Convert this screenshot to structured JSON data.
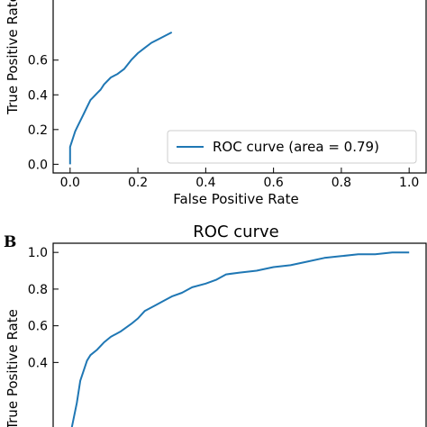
{
  "chart_data": [
    {
      "type": "line",
      "panel": "",
      "title": "",
      "xlabel": "False Positive Rate",
      "ylabel": "True Positive Rate",
      "xlim": [
        -0.05,
        1.05
      ],
      "ylim": [
        -0.05,
        1.05
      ],
      "xticks": [
        0.0,
        0.2,
        0.4,
        0.6,
        0.8,
        1.0
      ],
      "xtick_labels": [
        "0.0",
        "0.2",
        "0.4",
        "0.6",
        "0.8",
        "1.0"
      ],
      "yticks": [
        0.0,
        0.2,
        0.4,
        0.6
      ],
      "ytick_labels": [
        "0.0",
        "0.2",
        "0.4",
        "0.6"
      ],
      "grid": false,
      "legend": {
        "position": "bottom-right",
        "entries": [
          "ROC curve (area = 0.79)"
        ]
      },
      "series": [
        {
          "name": "ROC curve (area = 0.79)",
          "color": "#1f77b4",
          "x": [
            0.0,
            0.0,
            0.005,
            0.01,
            0.015,
            0.02,
            0.03,
            0.04,
            0.05,
            0.06,
            0.07,
            0.08,
            0.09,
            0.1,
            0.12,
            0.14,
            0.16,
            0.18,
            0.2,
            0.22,
            0.24,
            0.26,
            0.28,
            0.3
          ],
          "y": [
            0.0,
            0.1,
            0.13,
            0.16,
            0.19,
            0.21,
            0.25,
            0.29,
            0.33,
            0.37,
            0.39,
            0.41,
            0.43,
            0.46,
            0.5,
            0.52,
            0.55,
            0.6,
            0.64,
            0.67,
            0.7,
            0.72,
            0.74,
            0.76
          ]
        }
      ]
    },
    {
      "type": "line",
      "panel": "B",
      "title": "ROC curve",
      "xlabel": "",
      "ylabel": "True Positive Rate",
      "xlim": [
        -0.05,
        1.05
      ],
      "ylim": [
        -0.05,
        1.05
      ],
      "yticks": [
        0.4,
        0.6,
        0.8,
        1.0
      ],
      "ytick_labels": [
        "0.4",
        "0.6",
        "0.8",
        "1.0"
      ],
      "grid": false,
      "series": [
        {
          "name": "",
          "color": "#1f77b4",
          "x": [
            0.0,
            0.02,
            0.03,
            0.05,
            0.06,
            0.08,
            0.1,
            0.12,
            0.15,
            0.18,
            0.2,
            0.22,
            0.25,
            0.28,
            0.3,
            0.33,
            0.36,
            0.4,
            0.43,
            0.46,
            0.5,
            0.55,
            0.6,
            0.65,
            0.7,
            0.75,
            0.8,
            0.85,
            0.9,
            0.95,
            1.0
          ],
          "y": [
            0.0,
            0.18,
            0.3,
            0.41,
            0.44,
            0.47,
            0.51,
            0.54,
            0.57,
            0.61,
            0.64,
            0.68,
            0.71,
            0.74,
            0.76,
            0.78,
            0.81,
            0.83,
            0.85,
            0.88,
            0.89,
            0.9,
            0.92,
            0.93,
            0.95,
            0.97,
            0.98,
            0.99,
            0.99,
            1.0,
            1.0
          ]
        }
      ]
    }
  ]
}
